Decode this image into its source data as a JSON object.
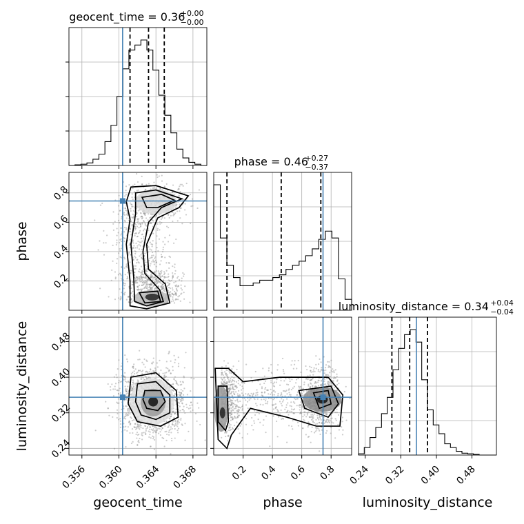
{
  "chart_data": {
    "type": "corner",
    "parameters": [
      {
        "name": "geocent_time",
        "label": "geocent_time",
        "median": 0.3632,
        "lo": 0.3612,
        "hi": 0.3649,
        "truth": 0.3604,
        "range": [
          0.3546,
          0.3695
        ],
        "ticks": [
          0.356,
          0.36,
          0.364,
          0.368
        ],
        "ticklabels": [
          "0.356",
          "0.360",
          "0.364",
          "0.368"
        ],
        "title": {
          "main": "geocent_time = 0.36",
          "plus": "+0.00",
          "minus": "−0.00"
        },
        "hist": [
          0,
          0.005,
          0.01,
          0.02,
          0.05,
          0.09,
          0.19,
          0.32,
          0.55,
          0.77,
          0.92,
          0.96,
          1.0,
          0.92,
          0.76,
          0.56,
          0.4,
          0.26,
          0.13,
          0.06,
          0.025,
          0.01,
          0.0
        ]
      },
      {
        "name": "phase",
        "label": "phase",
        "median": 0.46,
        "lo": 0.09,
        "hi": 0.73,
        "truth": 0.745,
        "range": [
          0.0,
          0.94
        ],
        "ticks": [
          0.2,
          0.4,
          0.6,
          0.8
        ],
        "ticklabels": [
          "0.2",
          "0.4",
          "0.6",
          "0.8"
        ],
        "title": {
          "main": "phase = 0.46",
          "plus": "+0.27",
          "minus": "−0.37"
        },
        "hist": [
          0.92,
          0.53,
          0.33,
          0.24,
          0.18,
          0.18,
          0.2,
          0.22,
          0.22,
          0.24,
          0.26,
          0.3,
          0.33,
          0.36,
          0.4,
          0.45,
          0.52,
          0.58,
          0.53,
          0.23,
          0.08
        ]
      },
      {
        "name": "luminosity_distance",
        "label": "luminosity_distance",
        "median": 0.34,
        "lo": 0.3,
        "hi": 0.38,
        "truth": 0.355,
        "range": [
          0.225,
          0.535
        ],
        "ticks": [
          0.24,
          0.32,
          0.4,
          0.48
        ],
        "ticklabels": [
          "0.24",
          "0.32",
          "0.40",
          "0.48"
        ],
        "title": {
          "main": "luminosity_distance = 0.34",
          "plus": "+0.04",
          "minus": "−0.04"
        },
        "hist": [
          0.01,
          0.06,
          0.14,
          0.22,
          0.33,
          0.46,
          0.68,
          0.85,
          0.96,
          1.0,
          0.9,
          0.6,
          0.36,
          0.24,
          0.17,
          0.09,
          0.06,
          0.03,
          0.015,
          0.01,
          0.005,
          0.0,
          0.0,
          0.0
        ]
      }
    ],
    "truth_color": "#4682b4",
    "contour_color": "#000000",
    "grid": true,
    "pairs": [
      {
        "x": "geocent_time",
        "y": "phase"
      },
      {
        "x": "geocent_time",
        "y": "luminosity_distance"
      },
      {
        "x": "phase",
        "y": "luminosity_distance"
      }
    ]
  }
}
